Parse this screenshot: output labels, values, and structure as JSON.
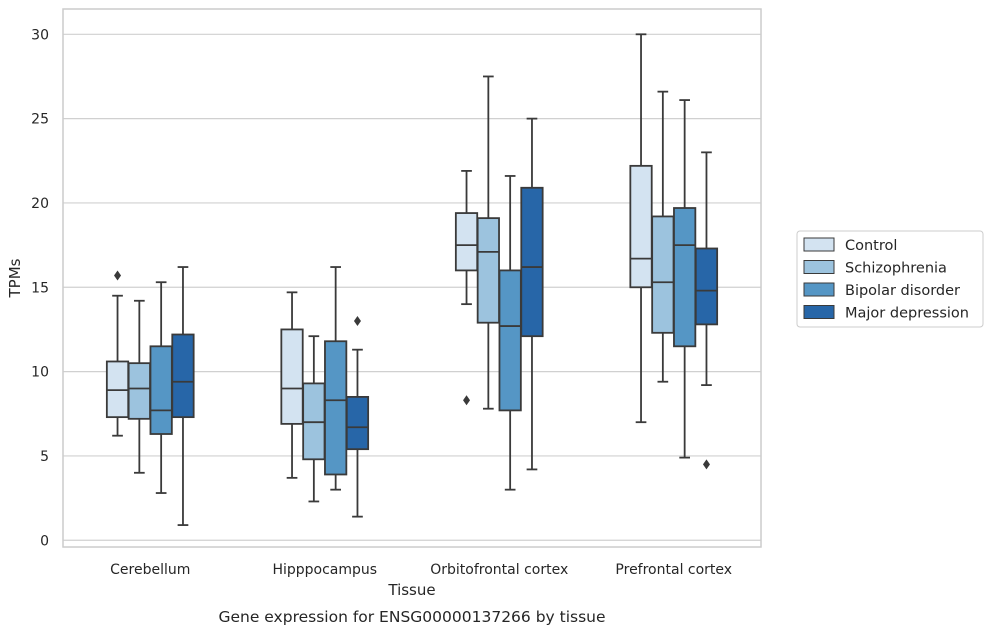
{
  "chart_data": {
    "type": "boxplot",
    "xlabel": "Tissue",
    "ylabel": "TPMs",
    "caption": "Gene expression for ENSG00000137266 by tissue",
    "categories": [
      "Cerebellum",
      "Hipppocampus",
      "Orbitofrontal cortex",
      "Prefrontal cortex"
    ],
    "ylim": [
      -0.4,
      31.5
    ],
    "yticks": [
      0,
      5,
      10,
      15,
      20,
      25,
      30
    ],
    "grid": "horizontal",
    "legend_position": "right",
    "series": [
      {
        "name": "Control",
        "color": "#d3e3f1",
        "boxes": [
          {
            "whislo": 6.2,
            "q1": 7.3,
            "med": 8.9,
            "q3": 10.6,
            "whishi": 14.5,
            "fliers": [
              15.7
            ]
          },
          {
            "whislo": 3.7,
            "q1": 6.9,
            "med": 9.0,
            "q3": 12.5,
            "whishi": 14.7,
            "fliers": []
          },
          {
            "whislo": 14.0,
            "q1": 16.0,
            "med": 17.5,
            "q3": 19.4,
            "whishi": 21.9,
            "fliers": [
              8.3
            ]
          },
          {
            "whislo": 7.0,
            "q1": 15.0,
            "med": 16.7,
            "q3": 22.2,
            "whishi": 30.0,
            "fliers": []
          }
        ]
      },
      {
        "name": "Schizophrenia",
        "color": "#9cc3de",
        "boxes": [
          {
            "whislo": 4.0,
            "q1": 7.2,
            "med": 9.0,
            "q3": 10.5,
            "whishi": 14.2,
            "fliers": []
          },
          {
            "whislo": 2.3,
            "q1": 4.8,
            "med": 7.0,
            "q3": 9.3,
            "whishi": 12.1,
            "fliers": []
          },
          {
            "whislo": 7.8,
            "q1": 12.9,
            "med": 17.1,
            "q3": 19.1,
            "whishi": 27.5,
            "fliers": []
          },
          {
            "whislo": 9.4,
            "q1": 12.3,
            "med": 15.3,
            "q3": 19.2,
            "whishi": 26.6,
            "fliers": []
          }
        ]
      },
      {
        "name": "Bipolar disorder",
        "color": "#5596c5",
        "boxes": [
          {
            "whislo": 2.8,
            "q1": 6.3,
            "med": 7.7,
            "q3": 11.5,
            "whishi": 15.3,
            "fliers": []
          },
          {
            "whislo": 3.0,
            "q1": 3.9,
            "med": 8.3,
            "q3": 11.8,
            "whishi": 16.2,
            "fliers": []
          },
          {
            "whislo": 3.0,
            "q1": 7.7,
            "med": 12.7,
            "q3": 16.0,
            "whishi": 21.6,
            "fliers": []
          },
          {
            "whislo": 4.9,
            "q1": 11.5,
            "med": 17.5,
            "q3": 19.7,
            "whishi": 26.1,
            "fliers": []
          }
        ]
      },
      {
        "name": "Major depression",
        "color": "#2766a8",
        "boxes": [
          {
            "whislo": 0.9,
            "q1": 7.3,
            "med": 9.4,
            "q3": 12.2,
            "whishi": 16.2,
            "fliers": []
          },
          {
            "whislo": 1.4,
            "q1": 5.4,
            "med": 6.7,
            "q3": 8.5,
            "whishi": 11.3,
            "fliers": [
              13.0
            ]
          },
          {
            "whislo": 4.2,
            "q1": 12.1,
            "med": 16.2,
            "q3": 20.9,
            "whishi": 25.0,
            "fliers": []
          },
          {
            "whislo": 9.2,
            "q1": 12.8,
            "med": 14.8,
            "q3": 17.3,
            "whishi": 23.0,
            "fliers": [
              4.5
            ]
          }
        ]
      }
    ]
  }
}
